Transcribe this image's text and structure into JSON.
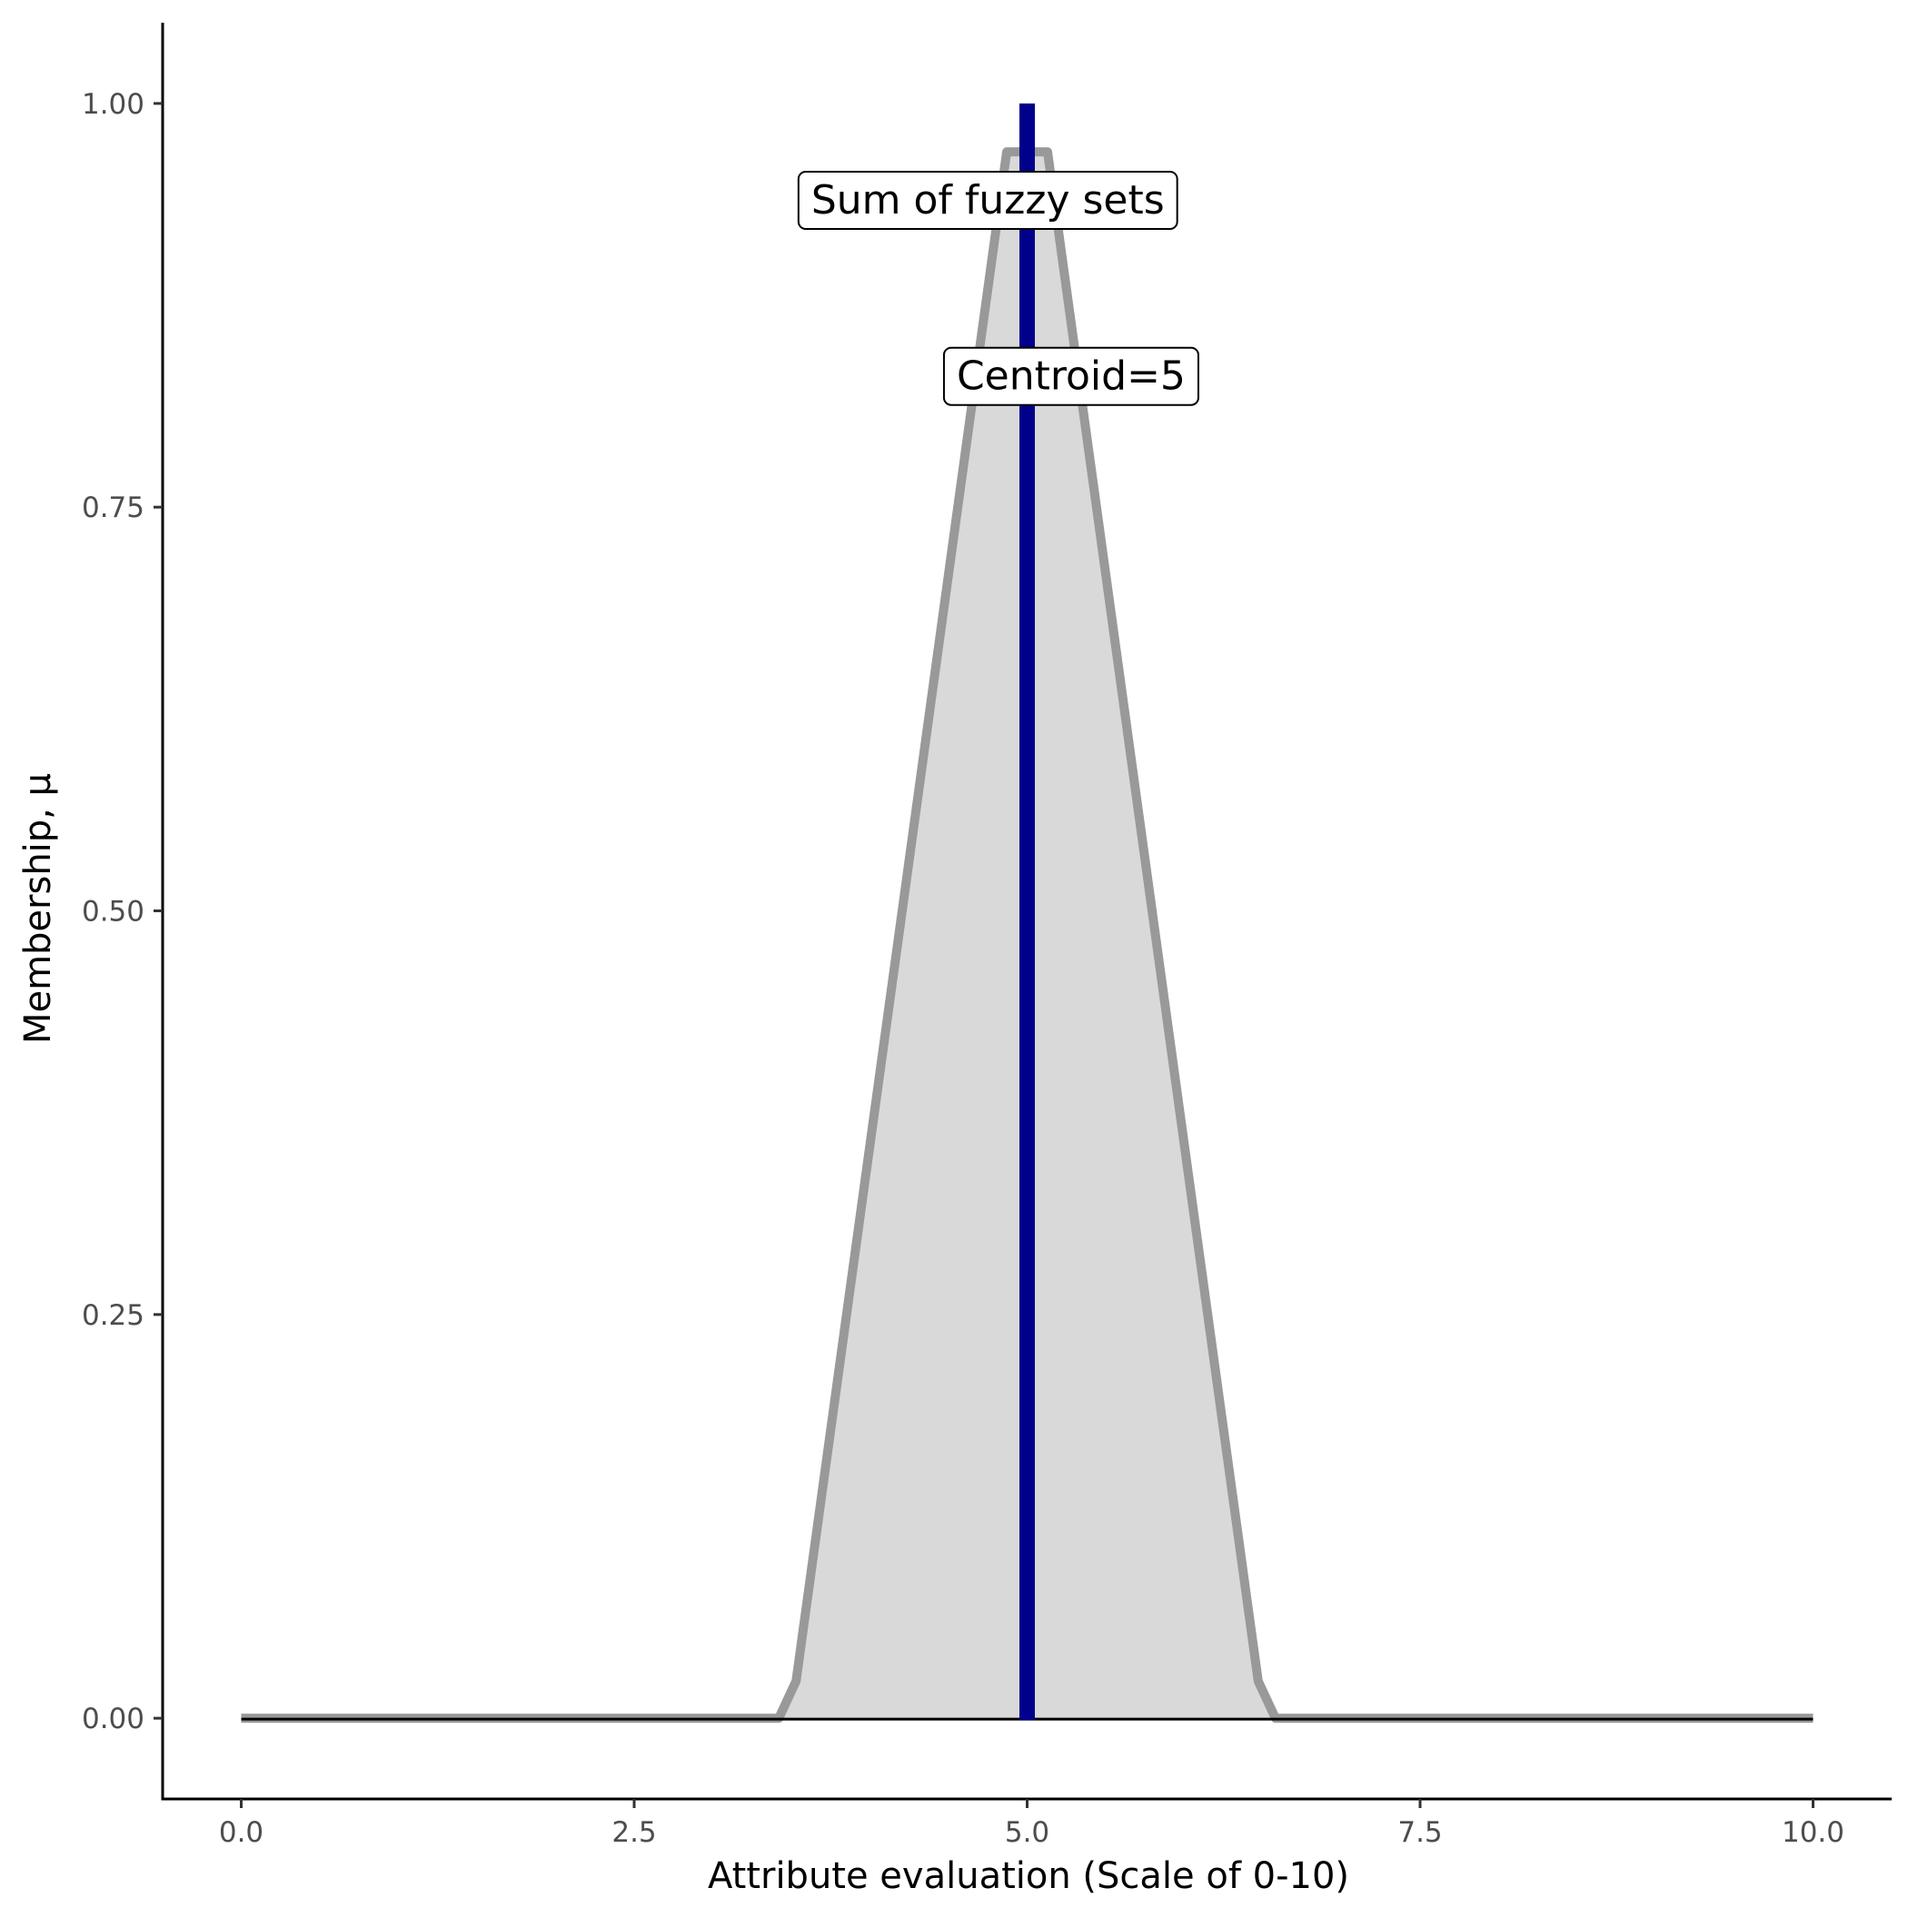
{
  "chart_data": {
    "type": "area",
    "title": "",
    "xlabel": "Attribute evaluation (Scale of 0-10)",
    "ylabel": "Membership, μ",
    "xlim": [
      -0.5,
      10.5
    ],
    "ylim": [
      -0.05,
      1.05
    ],
    "x_ticks": [
      0,
      2.5,
      5,
      7.5,
      10
    ],
    "x_tick_labels": [
      "0.0",
      "2.5",
      "5.0",
      "7.5",
      "10.0"
    ],
    "y_ticks": [
      0,
      0.25,
      0.5,
      0.75,
      1
    ],
    "y_tick_labels": [
      "0.00",
      "0.25",
      "0.50",
      "0.75",
      "1.00"
    ],
    "grid": false,
    "legend": "none",
    "series": [
      {
        "kind": "area",
        "x": [
          0,
          3.42,
          3.53,
          4.87,
          4.93,
          5.07,
          5.13,
          6.47,
          6.58,
          10
        ],
        "y": [
          0,
          0,
          0.023,
          0.97,
          0.97,
          0.97,
          0.97,
          0.023,
          0,
          0
        ],
        "line_color": "#999999",
        "fill_color": "#d9d9d9"
      }
    ],
    "reference_line": {
      "kind": "vertical",
      "x": 5,
      "y_from": 0,
      "y_to": 1,
      "color": "#00008b"
    },
    "baseline": {
      "y": 0,
      "x_from": 0,
      "x_to": 10,
      "color": "#000000"
    },
    "annotations": [
      {
        "text": "Sum of fuzzy sets",
        "x": 4.75,
        "y": 0.94
      },
      {
        "text": "Centroid=5",
        "x": 5.28,
        "y": 0.831
      }
    ]
  }
}
